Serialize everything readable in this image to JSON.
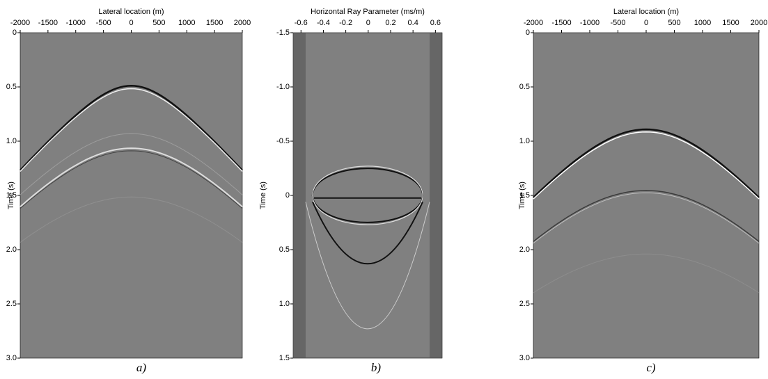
{
  "panels": [
    {
      "x_label": "Lateral location (m)",
      "y_label": "Time (s)",
      "caption": "a)",
      "xlim": [
        -2000,
        2000
      ],
      "ylim": [
        0,
        3
      ],
      "xticks": [
        -2000,
        -1500,
        -1000,
        -500,
        0,
        500,
        1000,
        1500,
        2000
      ],
      "yticks": [
        0,
        0.5,
        {
          "value": 1,
          "label": "1.0"
        },
        1.5,
        {
          "value": 2,
          "label": "2.0"
        },
        2.5,
        {
          "value": 3,
          "label": "3.0"
        }
      ]
    },
    {
      "x_label": "Horizontal Ray Parameter (ms/m)",
      "y_label": "Time (s)",
      "caption": "b)",
      "xlim": [
        -0.67,
        0.66
      ],
      "ylim": [
        -1.5,
        1.5
      ],
      "xticks": [
        -0.6,
        -0.4,
        -0.2,
        0,
        0.2,
        0.4,
        0.6
      ],
      "yticks": [
        -1.5,
        {
          "value": -1,
          "label": "-1.0"
        },
        -0.5,
        0,
        0.5,
        {
          "value": 1,
          "label": "1.0"
        },
        1.5
      ]
    },
    {
      "x_label": "Lateral location (m)",
      "y_label": "Time (s)",
      "caption": "c)",
      "xlim": [
        -2000,
        2000
      ],
      "ylim": [
        0,
        3
      ],
      "xticks": [
        -2000,
        -1500,
        -1000,
        -500,
        0,
        500,
        1000,
        1500,
        2000
      ],
      "yticks": [
        0,
        0.5,
        {
          "value": 1,
          "label": "1.0"
        },
        1.5,
        {
          "value": 2,
          "label": "2.0"
        },
        2.5,
        {
          "value": 3,
          "label": "3.0"
        }
      ]
    }
  ]
}
